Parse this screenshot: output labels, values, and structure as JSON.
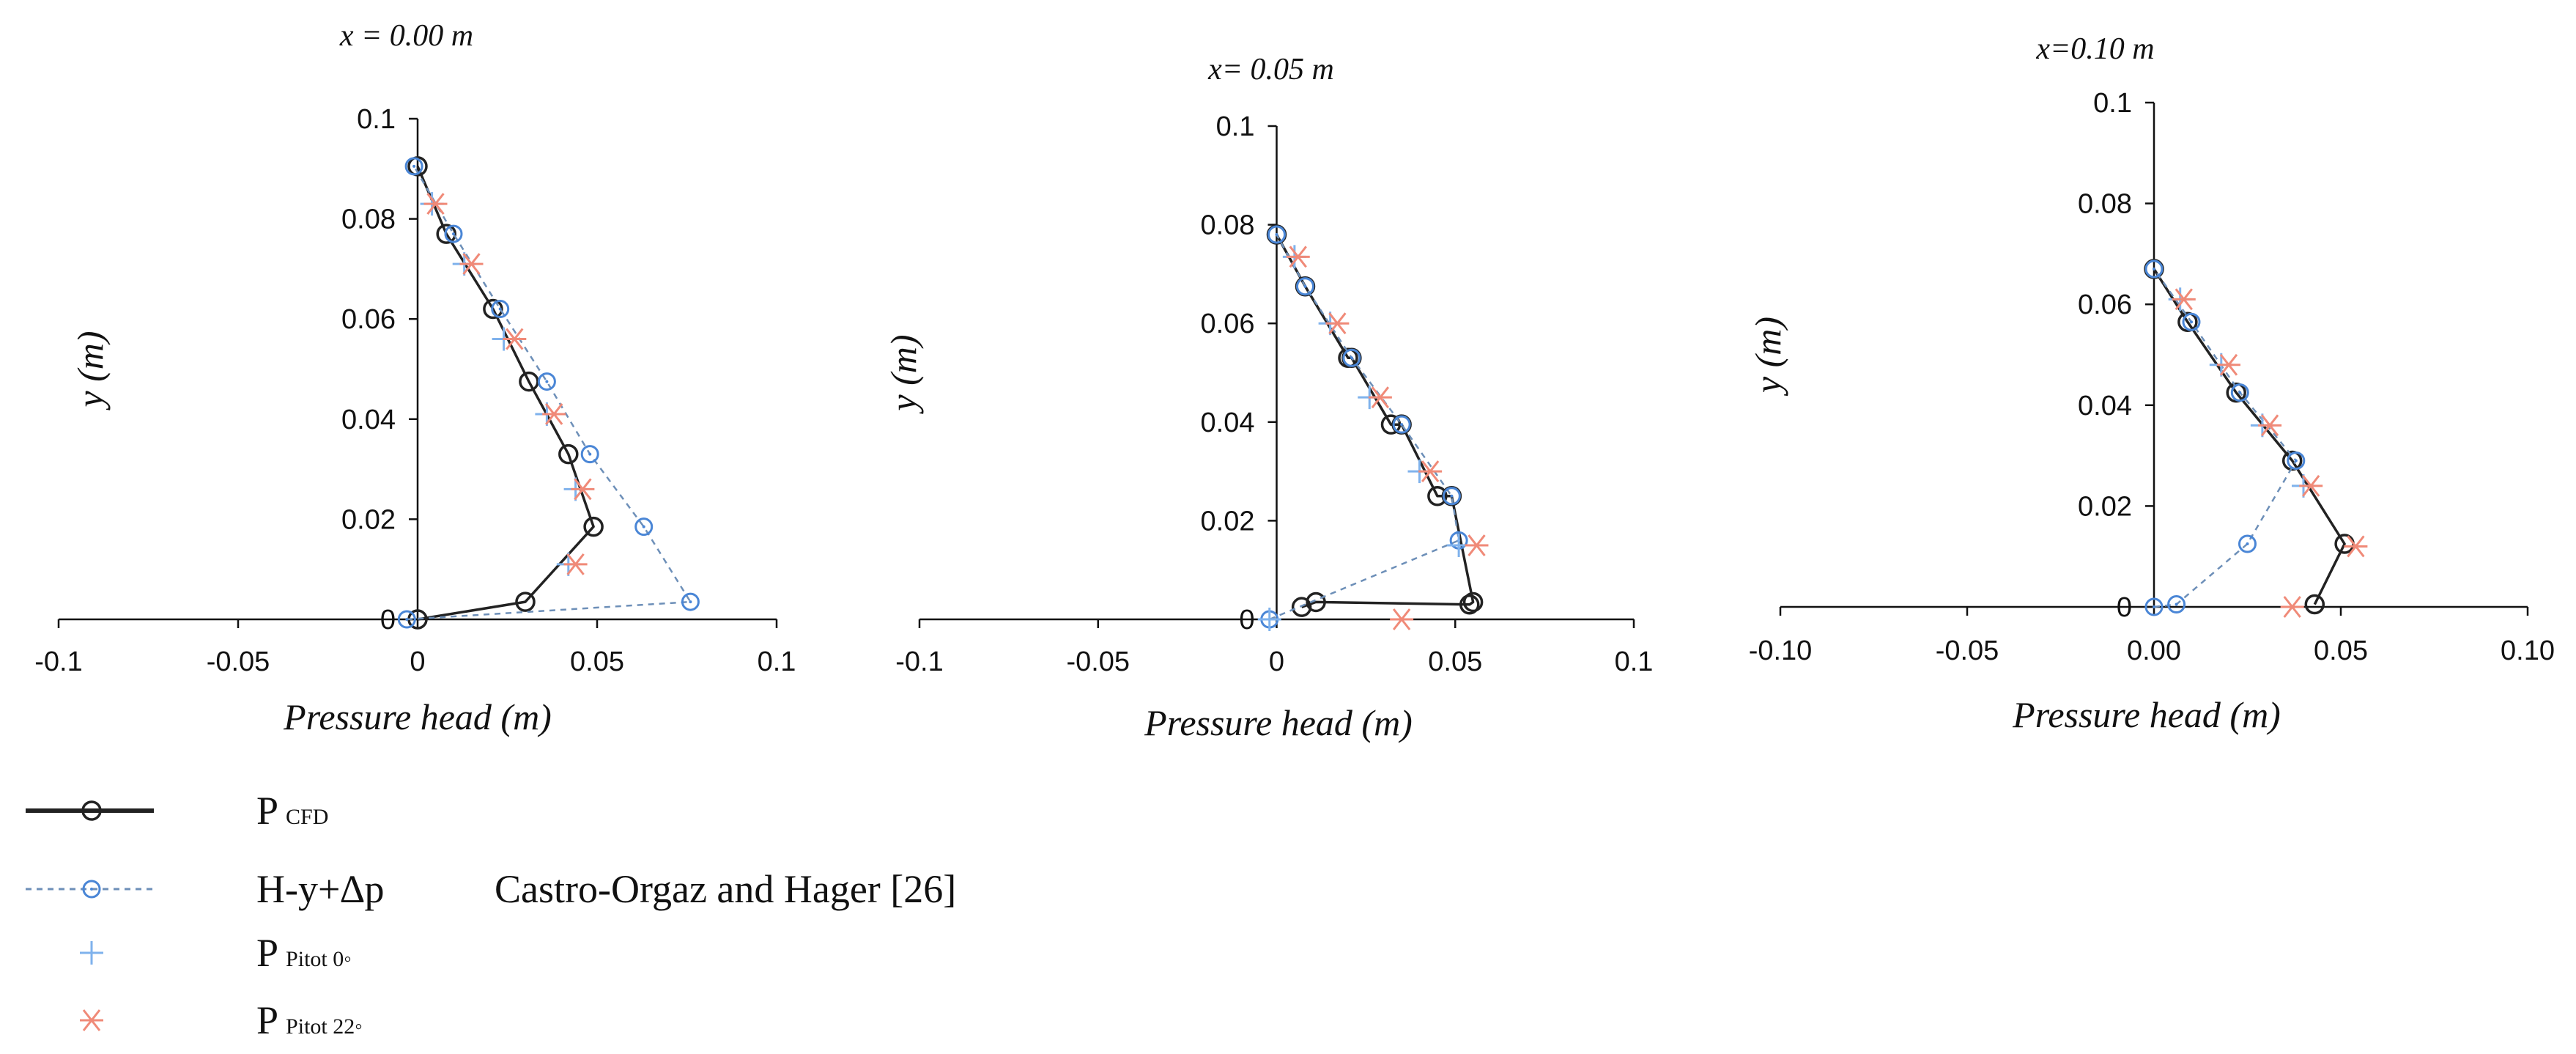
{
  "colors": {
    "cfd": "#222222",
    "hyp": "#4a86d6",
    "pitot0": "#7fb2ec",
    "pitot22": "#f08a78",
    "axis": "#111111"
  },
  "legend": {
    "items": [
      {
        "main": "P",
        "sub": "CFD",
        "style": "cfd"
      },
      {
        "main": "H-y+∆p",
        "sub": "",
        "style": "hyp",
        "note": "Castro-Orgaz and Hager [26]"
      },
      {
        "main": "P",
        "sub": "Pitot 0◦",
        "style": "pitot0"
      },
      {
        "main": "P",
        "sub": "Pitot 22◦",
        "style": "pitot22"
      }
    ]
  },
  "chart_data": [
    {
      "type": "line",
      "title": "x = 0.00 m",
      "xlabel": "Pressure head (m)",
      "ylabel": "y (m)",
      "xlim": [
        -0.1,
        0.1
      ],
      "ylim": [
        0,
        0.1
      ],
      "xticks": [
        "-0.1",
        "-0.05",
        "0",
        "0.05",
        "0.1"
      ],
      "yticks": [
        "0",
        "0.02",
        "0.04",
        "0.06",
        "0.08",
        "0.1"
      ],
      "series": [
        {
          "key": "cfd",
          "points": [
            [
              0.0,
              0.0
            ],
            [
              0.03,
              0.0035
            ],
            [
              0.049,
              0.0185
            ],
            [
              0.042,
              0.033
            ],
            [
              0.031,
              0.0475
            ],
            [
              0.021,
              0.062
            ],
            [
              0.008,
              0.077
            ],
            [
              0.0,
              0.0905
            ]
          ]
        },
        {
          "key": "hyp",
          "points": [
            [
              -0.003,
              0.0
            ],
            [
              0.076,
              0.0035
            ],
            [
              0.063,
              0.0185
            ],
            [
              0.048,
              0.033
            ],
            [
              0.036,
              0.0475
            ],
            [
              0.023,
              0.062
            ],
            [
              0.01,
              0.077
            ],
            [
              -0.001,
              0.0905
            ]
          ]
        },
        {
          "key": "pitot0",
          "points": [
            [
              0.042,
              0.011
            ],
            [
              0.044,
              0.026
            ],
            [
              0.036,
              0.041
            ],
            [
              0.024,
              0.056
            ],
            [
              0.013,
              0.071
            ],
            [
              0.004,
              0.083
            ]
          ]
        },
        {
          "key": "pitot22",
          "points": [
            [
              0.044,
              0.011
            ],
            [
              0.046,
              0.026
            ],
            [
              0.038,
              0.041
            ],
            [
              0.027,
              0.056
            ],
            [
              0.015,
              0.071
            ],
            [
              0.005,
              0.083
            ]
          ]
        }
      ]
    },
    {
      "type": "line",
      "title": "x= 0.05 m",
      "xlabel": "Pressure head (m)",
      "ylabel": "y (m)",
      "xlim": [
        -0.1,
        0.1
      ],
      "ylim": [
        0,
        0.1
      ],
      "xticks": [
        "-0.1",
        "-0.05",
        "0",
        "0.05",
        "0.1"
      ],
      "yticks": [
        "0",
        "0.02",
        "0.04",
        "0.06",
        "0.08",
        "0.1"
      ],
      "series": [
        {
          "key": "cfd",
          "points": [
            [
              0.007,
              0.0025
            ],
            [
              0.011,
              0.0035
            ],
            [
              0.054,
              0.003
            ],
            [
              0.055,
              0.0035
            ],
            [
              0.049,
              0.025
            ],
            [
              0.045,
              0.025
            ],
            [
              0.035,
              0.0395
            ],
            [
              0.032,
              0.0395
            ],
            [
              0.021,
              0.053
            ],
            [
              0.02,
              0.053
            ],
            [
              0.008,
              0.0675
            ],
            [
              0.0,
              0.078
            ]
          ]
        },
        {
          "key": "hyp",
          "points": [
            [
              -0.002,
              0.0
            ],
            [
              0.051,
              0.016
            ],
            [
              0.049,
              0.025
            ],
            [
              0.035,
              0.0395
            ],
            [
              0.021,
              0.053
            ],
            [
              0.008,
              0.0675
            ],
            [
              0.0,
              0.078
            ]
          ]
        },
        {
          "key": "pitot0",
          "points": [
            [
              -0.002,
              0.0
            ],
            [
              0.051,
              0.015
            ],
            [
              0.04,
              0.03
            ],
            [
              0.026,
              0.045
            ],
            [
              0.015,
              0.06
            ],
            [
              0.005,
              0.0735
            ]
          ]
        },
        {
          "key": "pitot22",
          "points": [
            [
              0.035,
              0.0
            ],
            [
              0.056,
              0.015
            ],
            [
              0.043,
              0.03
            ],
            [
              0.029,
              0.045
            ],
            [
              0.017,
              0.06
            ],
            [
              0.006,
              0.0735
            ]
          ]
        }
      ]
    },
    {
      "type": "line",
      "title": "x=0.10 m",
      "xlabel": "Pressure head (m)",
      "ylabel": "y (m)",
      "xlim": [
        -0.1,
        0.1
      ],
      "ylim": [
        0,
        0.1
      ],
      "xticks": [
        "-0.10",
        "-0.05",
        "0.00",
        "0.05",
        "0.10"
      ],
      "yticks": [
        "0",
        "0.02",
        "0.04",
        "0.06",
        "0.08",
        "0.1"
      ],
      "series": [
        {
          "key": "cfd",
          "points": [
            [
              0.043,
              0.0005
            ],
            [
              0.051,
              0.0125
            ],
            [
              0.037,
              0.029
            ],
            [
              0.022,
              0.0425
            ],
            [
              0.009,
              0.0565
            ],
            [
              0.0,
              0.067
            ]
          ]
        },
        {
          "key": "hyp",
          "points": [
            [
              0.0,
              0.0
            ],
            [
              0.006,
              0.0005
            ],
            [
              0.025,
              0.0125
            ],
            [
              0.038,
              0.029
            ],
            [
              0.023,
              0.0425
            ],
            [
              0.01,
              0.0565
            ],
            [
              0.0,
              0.067
            ]
          ]
        },
        {
          "key": "pitot0",
          "points": [
            [
              0.04,
              0.024
            ],
            [
              0.029,
              0.036
            ],
            [
              0.018,
              0.048
            ],
            [
              0.007,
              0.061
            ]
          ]
        },
        {
          "key": "pitot22",
          "points": [
            [
              0.037,
              0.0
            ],
            [
              0.054,
              0.012
            ],
            [
              0.042,
              0.024
            ],
            [
              0.031,
              0.036
            ],
            [
              0.02,
              0.048
            ],
            [
              0.008,
              0.061
            ]
          ]
        }
      ]
    }
  ]
}
